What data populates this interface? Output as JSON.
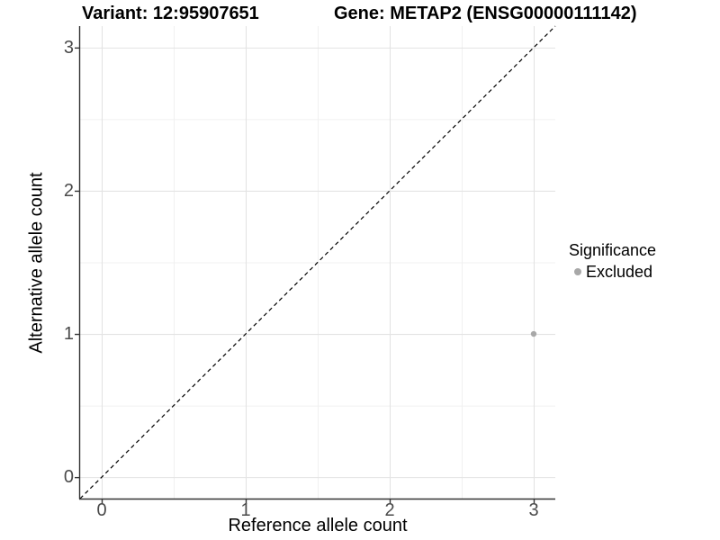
{
  "chart_data": {
    "type": "scatter",
    "titles": {
      "left": "Variant: 12:95907651",
      "right": "Gene: METAP2 (ENSG00000111142)"
    },
    "xlabel": "Reference allele count",
    "ylabel": "Alternative allele count",
    "xlim": [
      -0.15,
      3.15
    ],
    "ylim": [
      -0.15,
      3.15
    ],
    "xticks": [
      0,
      1,
      2,
      3
    ],
    "yticks": [
      0,
      1,
      2,
      3
    ],
    "minor_ticks_x": [
      0.5,
      1.5,
      2.5
    ],
    "minor_ticks_y": [
      0.5,
      1.5,
      2.5
    ],
    "grid": "major and minor, light grey on white",
    "points": [
      {
        "x": 3,
        "y": 1,
        "significance": "Excluded"
      }
    ],
    "identity_line": {
      "style": "dashed",
      "slope": 1,
      "intercept": 0
    },
    "legend": {
      "title": "Significance",
      "position": "right-center",
      "items": [
        {
          "label": "Excluded",
          "color": "#a8a8a8"
        }
      ]
    },
    "colors": {
      "point": "#a8a8a8",
      "grid_major": "#e3e3e3",
      "grid_minor": "#f0f0f0",
      "axis_line": "#333333",
      "tick_label": "#4a4a4a",
      "identity_line": "#000000",
      "background": "#ffffff"
    }
  }
}
